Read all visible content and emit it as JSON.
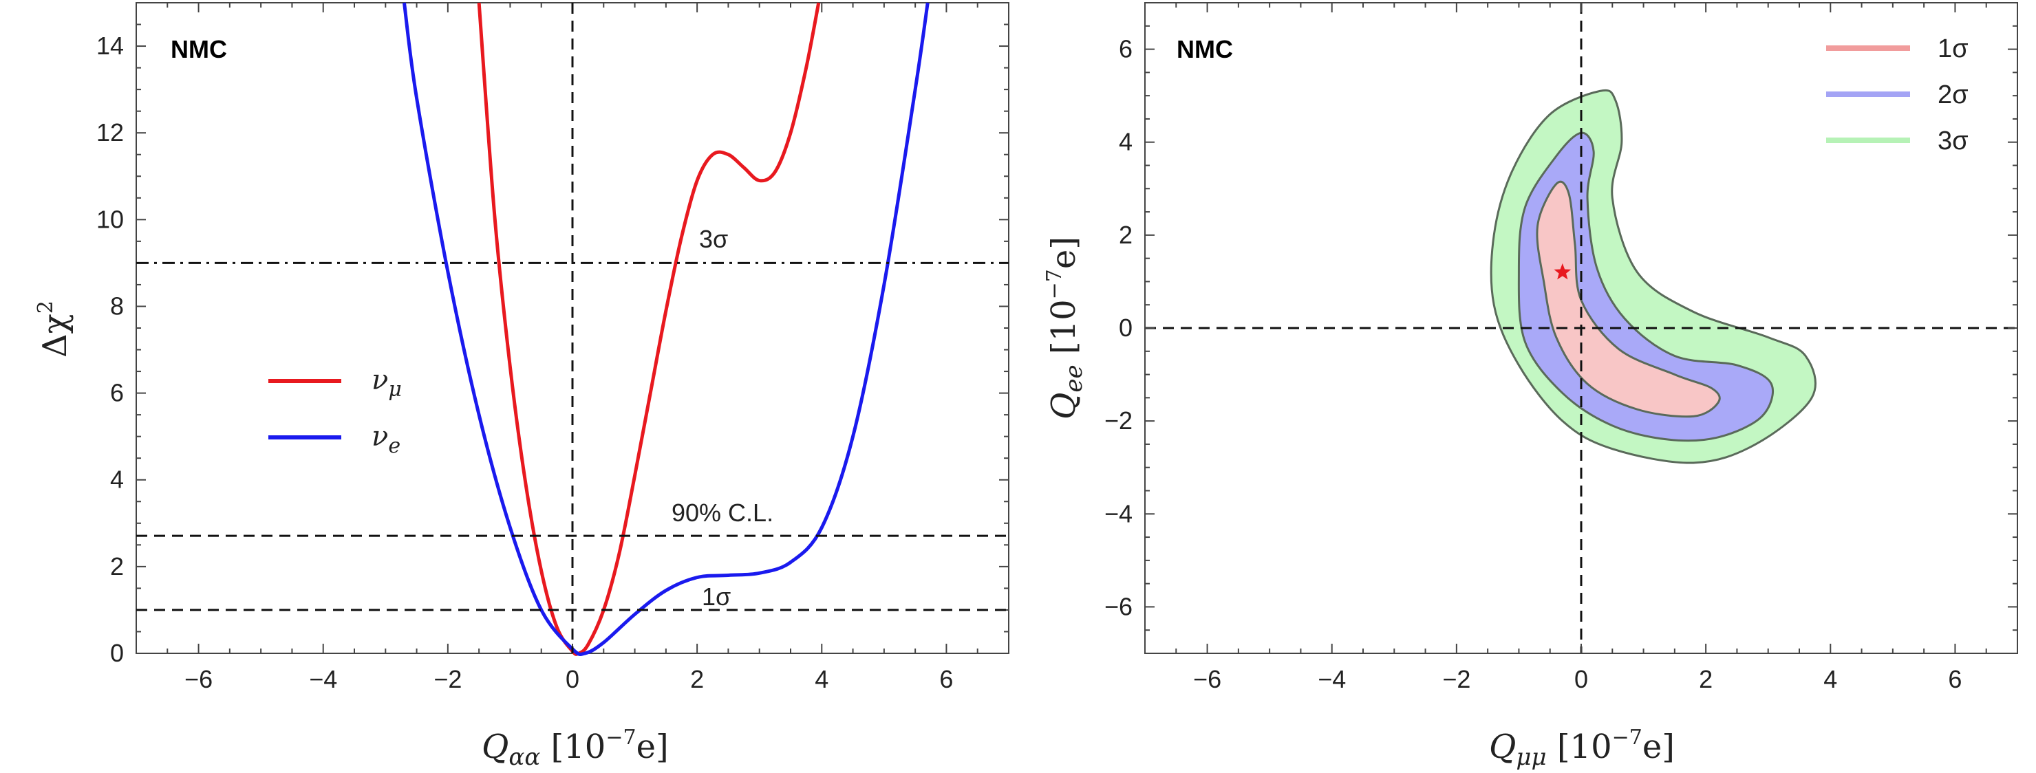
{
  "chart_data": [
    {
      "type": "line",
      "panel_label": "NMC",
      "xlabel": "Q_{αα} [10^{-7}e]",
      "xlabel_parts": {
        "sym": "Q",
        "sub": "αα",
        "pre": " [10",
        "exp": "−7",
        "post": "e]"
      },
      "ylabel_parts": {
        "pre": "Δχ",
        "exp": "2"
      },
      "xlim": [
        -7,
        7
      ],
      "ylim": [
        0,
        15
      ],
      "xticks": [
        -6,
        -4,
        -2,
        0,
        2,
        4,
        6
      ],
      "xtick_labels": [
        "−6",
        "−4",
        "−2",
        "0",
        "2",
        "4",
        "6"
      ],
      "yticks": [
        0,
        2,
        4,
        6,
        8,
        10,
        12,
        14
      ],
      "ytick_labels": [
        "0",
        "2",
        "4",
        "6",
        "8",
        "10",
        "12",
        "14"
      ],
      "series": [
        {
          "name": "νμ",
          "legend_sym": "ν",
          "legend_sub": "μ",
          "color": "#e8191f",
          "x": [
            -1.5,
            -1.25,
            -1.0,
            -0.75,
            -0.5,
            -0.25,
            0.0,
            0.1,
            0.25,
            0.5,
            0.75,
            1.0,
            1.25,
            1.5,
            1.75,
            2.0,
            2.25,
            2.5,
            2.75,
            3.0,
            3.25,
            3.5,
            3.75,
            3.95
          ],
          "y": [
            15.0,
            10.1,
            6.6,
            3.9,
            1.9,
            0.6,
            0.05,
            0.0,
            0.2,
            1.0,
            2.3,
            4.1,
            6.0,
            7.9,
            9.6,
            10.9,
            11.5,
            11.5,
            11.2,
            10.9,
            11.1,
            12.0,
            13.5,
            15.0
          ]
        },
        {
          "name": "νe",
          "legend_sym": "ν",
          "legend_sub": "e",
          "color": "#1a1aee",
          "x": [
            -2.7,
            -2.5,
            -2.0,
            -1.5,
            -1.0,
            -0.5,
            0.0,
            0.2,
            0.5,
            1.0,
            1.5,
            2.0,
            2.5,
            3.0,
            3.5,
            4.0,
            4.5,
            5.0,
            5.5,
            5.7
          ],
          "y": [
            15.0,
            12.8,
            8.8,
            5.5,
            2.9,
            1.0,
            0.1,
            0.0,
            0.25,
            0.9,
            1.45,
            1.75,
            1.8,
            1.85,
            2.1,
            2.9,
            5.0,
            8.5,
            13.0,
            15.0
          ]
        }
      ],
      "reference_lines": [
        {
          "y": 9,
          "label": "3σ",
          "style": "dash-dot"
        },
        {
          "y": 2.71,
          "label": "90% C.L.",
          "style": "dashed"
        },
        {
          "y": 1,
          "label": "1σ",
          "style": "dashed"
        }
      ],
      "vline": {
        "x": 0,
        "style": "dashed"
      },
      "legend_position": "center-left"
    },
    {
      "type": "contour",
      "panel_label": "NMC",
      "xlabel_parts": {
        "sym": "Q",
        "sub": "μμ",
        "pre": " [10",
        "exp": "−7",
        "post": "e]"
      },
      "ylabel_parts": {
        "sym": "Q",
        "sub": "ee",
        "pre": " [10",
        "exp": "−7",
        "post": "e]"
      },
      "xlim": [
        -7,
        7
      ],
      "ylim": [
        -7,
        7
      ],
      "xticks": [
        -6,
        -4,
        -2,
        0,
        2,
        4,
        6
      ],
      "xtick_labels": [
        "−6",
        "−4",
        "−2",
        "0",
        "2",
        "4",
        "6"
      ],
      "yticks": [
        -6,
        -4,
        -2,
        0,
        2,
        4,
        6
      ],
      "ytick_labels": [
        "−6",
        "−4",
        "−2",
        "0",
        "2",
        "4",
        "6"
      ],
      "best_fit": {
        "x": -0.3,
        "y": 1.2,
        "color": "#e8191f"
      },
      "regions": [
        {
          "name": "3σ",
          "color": "#c3f7c3",
          "points": [
            [
              0.3,
              5.1
            ],
            [
              0.55,
              4.9
            ],
            [
              0.65,
              4.0
            ],
            [
              0.5,
              2.8
            ],
            [
              0.9,
              1.2
            ],
            [
              1.8,
              0.35
            ],
            [
              3.0,
              -0.2
            ],
            [
              3.6,
              -0.6
            ],
            [
              3.7,
              -1.5
            ],
            [
              2.8,
              -2.5
            ],
            [
              1.8,
              -2.9
            ],
            [
              0.5,
              -2.6
            ],
            [
              -0.3,
              -2.0
            ],
            [
              -1.0,
              -0.8
            ],
            [
              -1.4,
              0.5
            ],
            [
              -1.4,
              2.0
            ],
            [
              -1.1,
              3.4
            ],
            [
              -0.5,
              4.6
            ]
          ]
        },
        {
          "name": "2σ",
          "color": "#a9a9f8",
          "points": [
            [
              0.0,
              4.2
            ],
            [
              0.2,
              3.8
            ],
            [
              0.1,
              2.8
            ],
            [
              0.25,
              1.3
            ],
            [
              0.7,
              0.2
            ],
            [
              1.5,
              -0.6
            ],
            [
              2.5,
              -0.8
            ],
            [
              3.05,
              -1.2
            ],
            [
              2.9,
              -1.9
            ],
            [
              2.2,
              -2.35
            ],
            [
              1.4,
              -2.4
            ],
            [
              0.5,
              -2.1
            ],
            [
              -0.3,
              -1.4
            ],
            [
              -0.9,
              -0.3
            ],
            [
              -1.0,
              1.2
            ],
            [
              -0.9,
              2.6
            ],
            [
              -0.4,
              3.7
            ]
          ]
        },
        {
          "name": "1σ",
          "color": "#f8c6c6",
          "points": [
            [
              -0.4,
              3.1
            ],
            [
              -0.2,
              2.9
            ],
            [
              -0.1,
              1.8
            ],
            [
              0.0,
              0.6
            ],
            [
              0.6,
              -0.45
            ],
            [
              1.5,
              -1.0
            ],
            [
              2.1,
              -1.3
            ],
            [
              2.2,
              -1.6
            ],
            [
              1.8,
              -1.9
            ],
            [
              0.9,
              -1.75
            ],
            [
              0.1,
              -1.2
            ],
            [
              -0.4,
              -0.2
            ],
            [
              -0.6,
              1.0
            ],
            [
              -0.7,
              2.2
            ]
          ]
        }
      ],
      "legend": [
        {
          "label": "1σ",
          "color": "#f19c9c"
        },
        {
          "label": "2σ",
          "color": "#a4a4f5"
        },
        {
          "label": "3σ",
          "color": "#b6f2b6"
        }
      ],
      "legend_position": "top-right"
    }
  ]
}
